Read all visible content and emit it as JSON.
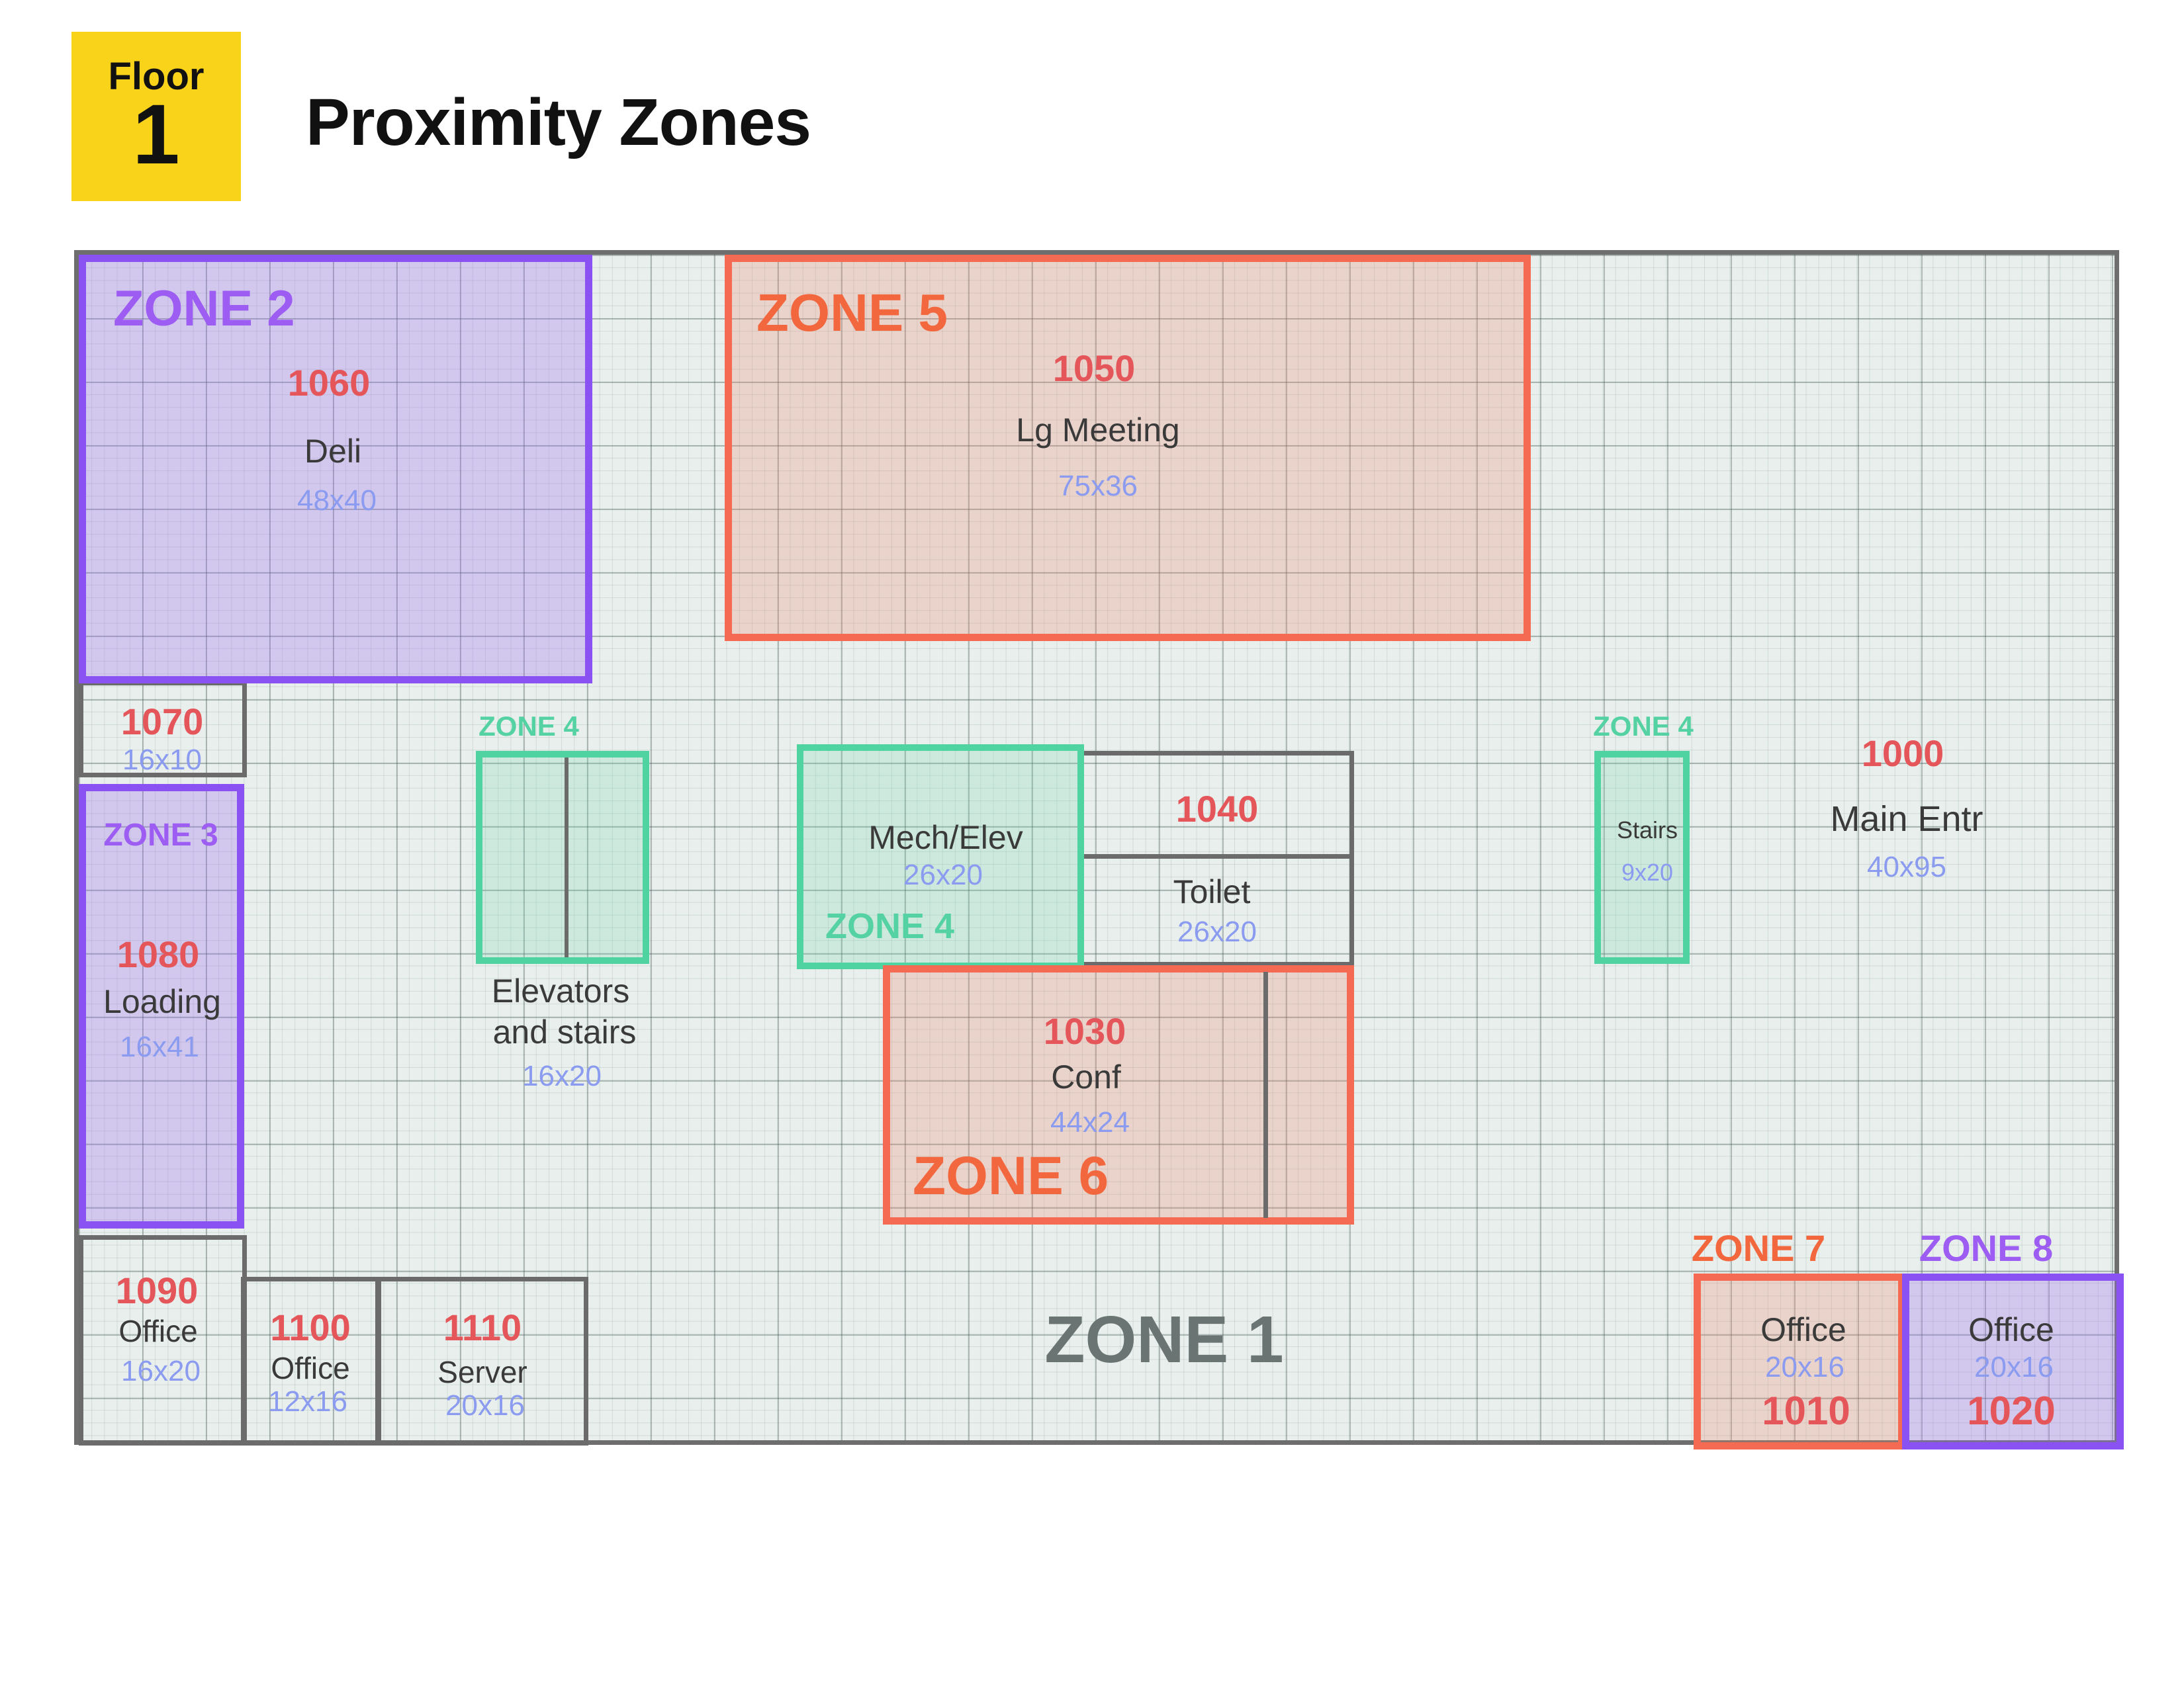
{
  "header": {
    "floor_label": "Floor",
    "floor_number": "1",
    "title": "Proximity Zones"
  },
  "colors": {
    "badge": "#f9d21a",
    "zone_purple": "#8a52f2",
    "zone_red": "#f56a52",
    "zone_green": "#4fd3a0",
    "wall_gray": "#6b6b6b",
    "room_number": "#e4565a",
    "dimension": "#8a9bf0"
  },
  "zones": {
    "zone1": "ZONE 1",
    "zone2": "ZONE 2",
    "zone3": "ZONE 3",
    "zone4": "ZONE 4",
    "zone5": "ZONE 5",
    "zone6": "ZONE 6",
    "zone7": "ZONE 7",
    "zone8": "ZONE 8"
  },
  "rooms": {
    "r1060": {
      "number": "1060",
      "name": "Deli",
      "dims": "48x40"
    },
    "r1050": {
      "number": "1050",
      "name": "Lg Meeting",
      "dims": "75x36"
    },
    "r1070": {
      "number": "1070",
      "dims": "16x10"
    },
    "r1080": {
      "number": "1080",
      "name": "Loading",
      "dims": "16x41"
    },
    "elevators": {
      "name_line1": "Elevators",
      "name_line2": "and stairs",
      "dims": "16x20"
    },
    "mech": {
      "name": "Mech/Elev",
      "dims": "26x20"
    },
    "r1040": {
      "number": "1040"
    },
    "toilet": {
      "name": "Toilet",
      "dims": "26x20"
    },
    "stairs": {
      "name": "Stairs",
      "dims": "9x20"
    },
    "r1000": {
      "number": "1000",
      "name": "Main Entr",
      "dims": "40x95"
    },
    "r1030": {
      "number": "1030",
      "name": "Conf",
      "dims": "44x24"
    },
    "r1090": {
      "number": "1090",
      "name": "Office",
      "dims": "16x20"
    },
    "r1100": {
      "number": "1100",
      "name": "Office",
      "dims": "12x16"
    },
    "r1110": {
      "number": "1110",
      "name": "Server",
      "dims": "20x16"
    },
    "r1010": {
      "number": "1010",
      "name": "Office",
      "dims": "20x16"
    },
    "r1020": {
      "number": "1020",
      "name": "Office",
      "dims": "20x16"
    }
  }
}
